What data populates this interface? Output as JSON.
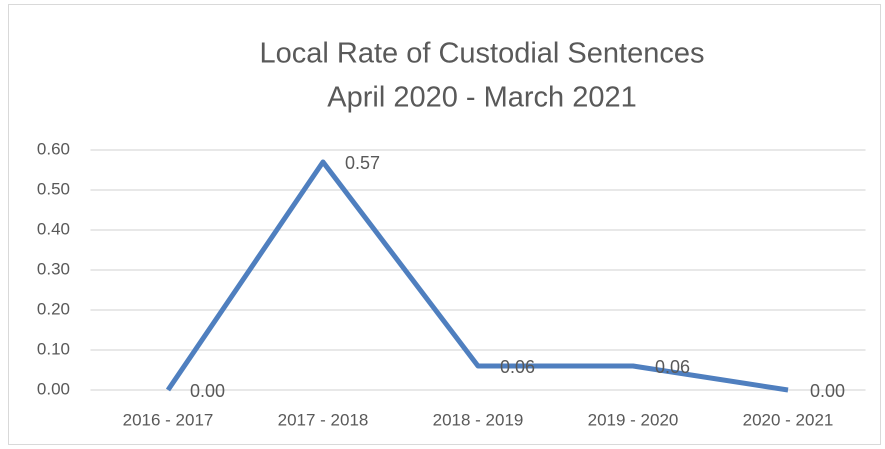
{
  "chart_data": {
    "type": "line",
    "title": "Local Rate of Custodial Sentences",
    "subtitle": "April 2020 - March 2021",
    "categories": [
      "2016 - 2017",
      "2017 - 2018",
      "2018 - 2019",
      "2019 - 2020",
      "2020 - 2021"
    ],
    "series": [
      {
        "name": "Local Rate",
        "color": "#4f7fbf",
        "values": [
          0,
          0.57,
          0.06,
          0.06,
          0
        ],
        "value_labels": [
          "0.00",
          "0.57",
          "0.06",
          "0.06",
          "0.00"
        ]
      }
    ],
    "ylim": [
      0,
      0.6
    ],
    "yticks": [
      {
        "value": 0,
        "label": "0.00"
      },
      {
        "value": 0.1,
        "label": "0.10"
      },
      {
        "value": 0.2,
        "label": "0.20"
      },
      {
        "value": 0.3,
        "label": "0.30"
      },
      {
        "value": 0.4,
        "label": "0.40"
      },
      {
        "value": 0.5,
        "label": "0.50"
      },
      {
        "value": 0.6,
        "label": "0.60"
      }
    ],
    "grid": true
  }
}
